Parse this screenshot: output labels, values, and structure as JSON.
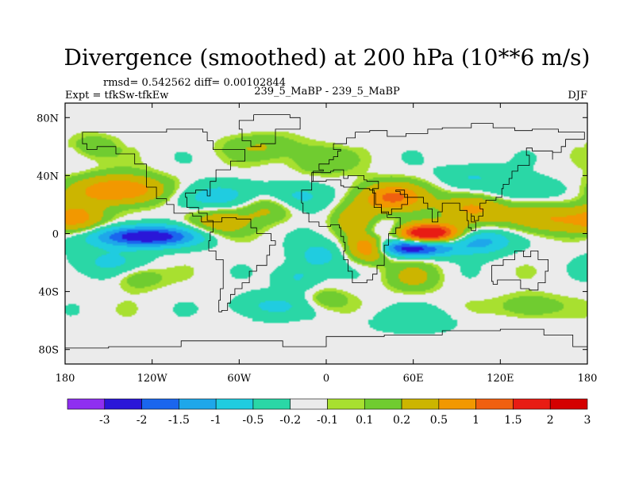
{
  "header": {
    "title": "Divergence (smoothed) at 200 hPa (10**6 m/s)",
    "stats": "rmsd= 0.542562 diff= 0.00102844",
    "expt": "Expt = tfkSw-tfkEw",
    "case": "239_5_MaBP - 239_5_MaBP",
    "season": "DJF"
  },
  "chart_data": {
    "type": "heatmap",
    "title": "Divergence (smoothed) at 200 hPa (10**6 m/s)",
    "xlabel": "",
    "ylabel": "",
    "xlim": [
      -180,
      180
    ],
    "ylim": [
      -90,
      90
    ],
    "x_ticks": [
      {
        "value": -180,
        "label": "180"
      },
      {
        "value": -120,
        "label": "120W"
      },
      {
        "value": -60,
        "label": "60W"
      },
      {
        "value": 0,
        "label": "0"
      },
      {
        "value": 60,
        "label": "60E"
      },
      {
        "value": 120,
        "label": "120E"
      },
      {
        "value": 180,
        "label": "180"
      }
    ],
    "y_ticks": [
      {
        "value": 80,
        "label": "80N"
      },
      {
        "value": 40,
        "label": "40N"
      },
      {
        "value": 0,
        "label": "0"
      },
      {
        "value": -40,
        "label": "40S"
      },
      {
        "value": -80,
        "label": "80S"
      }
    ],
    "colorbar": {
      "labels": [
        "-3",
        "-2",
        "-1.5",
        "-1",
        "-0.5",
        "-0.2",
        "-0.1",
        "0.1",
        "0.2",
        "0.5",
        "1",
        "1.5",
        "2",
        "3"
      ],
      "colors": [
        "#8f2ff0",
        "#2a16d8",
        "#1a66ee",
        "#1ea7ea",
        "#20cce0",
        "#2ad7a6",
        "#ebebeb",
        "#a8e030",
        "#70cc30",
        "#ccb500",
        "#f29800",
        "#f06010",
        "#e81c14",
        "#d40000"
      ]
    },
    "contour_levels": [
      -3,
      -2,
      -1.5,
      -1,
      -0.5,
      -0.2,
      -0.1,
      0.1,
      0.2,
      0.5,
      1,
      1.5,
      2,
      3
    ],
    "features": [
      {
        "lon": 70,
        "lat": 0,
        "value": 3.0,
        "sx": 16,
        "sy": 5
      },
      {
        "lon": 30,
        "lat": -10,
        "value": 1.8,
        "sx": 10,
        "sy": 6
      },
      {
        "lon": -142,
        "lat": 30,
        "value": 1.6,
        "sx": 22,
        "sy": 7
      },
      {
        "lon": 45,
        "lat": 25,
        "value": 1.6,
        "sx": 16,
        "sy": 7
      },
      {
        "lon": 20,
        "lat": 10,
        "value": 0.9,
        "sx": 10,
        "sy": 8
      },
      {
        "lon": 100,
        "lat": 18,
        "value": 1.1,
        "sx": 16,
        "sy": 7
      },
      {
        "lon": 155,
        "lat": 10,
        "value": 1.0,
        "sx": 25,
        "sy": 7
      },
      {
        "lon": -170,
        "lat": 10,
        "value": 0.9,
        "sx": 12,
        "sy": 8
      },
      {
        "lon": -75,
        "lat": 8,
        "value": 0.9,
        "sx": 15,
        "sy": 7
      },
      {
        "lon": -40,
        "lat": 18,
        "value": 0.7,
        "sx": 14,
        "sy": 7
      },
      {
        "lon": -45,
        "lat": 60,
        "value": 0.5,
        "sx": 18,
        "sy": 6
      },
      {
        "lon": -5,
        "lat": 50,
        "value": 0.5,
        "sx": 15,
        "sy": 7
      },
      {
        "lon": -160,
        "lat": 60,
        "value": 0.4,
        "sx": 12,
        "sy": 6
      },
      {
        "lon": 60,
        "lat": -30,
        "value": 0.6,
        "sx": 12,
        "sy": 7
      },
      {
        "lon": -130,
        "lat": -30,
        "value": 0.5,
        "sx": 12,
        "sy": 6
      },
      {
        "lon": 140,
        "lat": -50,
        "value": 0.5,
        "sx": 15,
        "sy": 6
      },
      {
        "lon": 0,
        "lat": -45,
        "value": 0.4,
        "sx": 10,
        "sy": 5
      },
      {
        "lon": -125,
        "lat": -2,
        "value": -2.6,
        "sx": 25,
        "sy": 5
      },
      {
        "lon": 60,
        "lat": -10,
        "value": -2.5,
        "sx": 18,
        "sy": 4
      },
      {
        "lon": 105,
        "lat": -5,
        "value": -1.3,
        "sx": 15,
        "sy": 6
      },
      {
        "lon": -80,
        "lat": 25,
        "value": -0.8,
        "sx": 20,
        "sy": 7
      },
      {
        "lon": -20,
        "lat": 25,
        "value": -0.8,
        "sx": 15,
        "sy": 7
      },
      {
        "lon": 40,
        "lat": 0,
        "value": -0.8,
        "sx": 10,
        "sy": 6
      },
      {
        "lon": -5,
        "lat": -15,
        "value": -0.7,
        "sx": 12,
        "sy": 7
      },
      {
        "lon": -150,
        "lat": -20,
        "value": -0.6,
        "sx": 18,
        "sy": 7
      },
      {
        "lon": 135,
        "lat": 30,
        "value": -0.6,
        "sx": 18,
        "sy": 6
      },
      {
        "lon": -40,
        "lat": -50,
        "value": -0.6,
        "sx": 18,
        "sy": 6
      },
      {
        "lon": 60,
        "lat": -60,
        "value": -0.4,
        "sx": 20,
        "sy": 6
      },
      {
        "lon": -20,
        "lat": -30,
        "value": -0.6,
        "sx": 10,
        "sy": 6
      },
      {
        "lon": 100,
        "lat": 40,
        "value": -0.5,
        "sx": 15,
        "sy": 6
      }
    ]
  }
}
